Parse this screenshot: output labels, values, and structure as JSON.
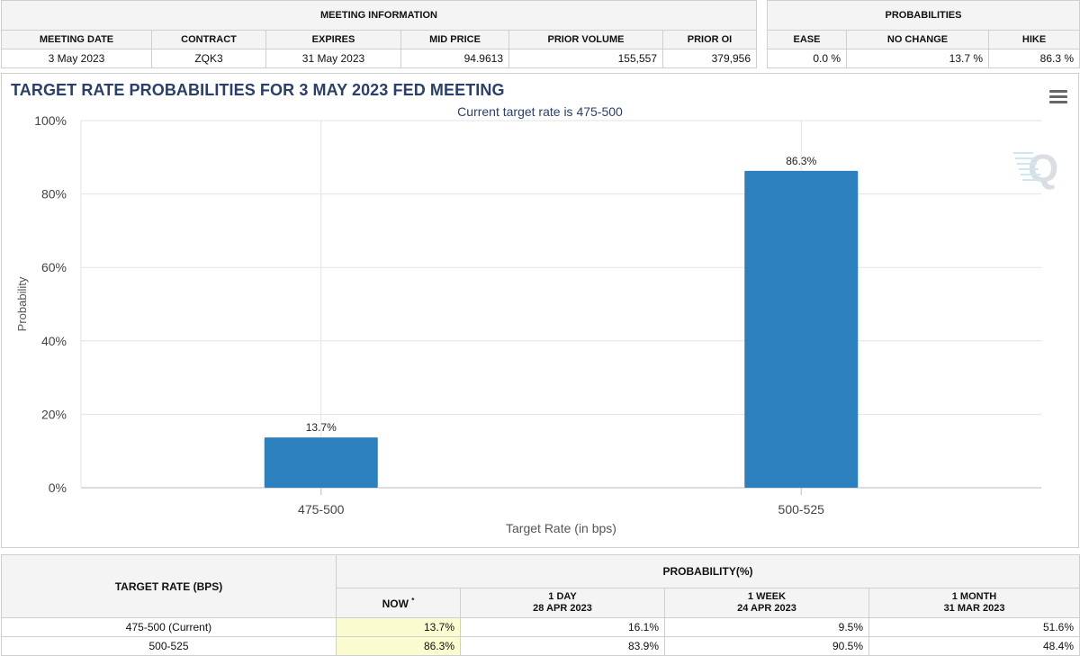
{
  "meeting_information": {
    "group_title": "MEETING INFORMATION",
    "columns": [
      "MEETING DATE",
      "CONTRACT",
      "EXPIRES",
      "MID PRICE",
      "PRIOR VOLUME",
      "PRIOR OI"
    ],
    "row": [
      "3 May 2023",
      "ZQK3",
      "31 May 2023",
      "94.9613",
      "155,557",
      "379,956"
    ]
  },
  "probabilities": {
    "group_title": "PROBABILITIES",
    "columns": [
      "EASE",
      "NO CHANGE",
      "HIKE"
    ],
    "row": [
      "0.0 %",
      "13.7 %",
      "86.3 %"
    ]
  },
  "chart": {
    "title": "TARGET RATE PROBABILITIES FOR 3 MAY 2023 FED MEETING",
    "menu_icon": "hamburger-menu-icon",
    "watermark_icon": "q-logo-icon",
    "bar_color": "#2b80bd"
  },
  "chart_data": {
    "type": "bar",
    "title": "TARGET RATE PROBABILITIES FOR 3 MAY 2023 FED MEETING",
    "subtitle": "Current target rate is 475-500",
    "categories": [
      "475-500",
      "500-525"
    ],
    "values": [
      13.7,
      86.3
    ],
    "data_labels": [
      "13.7%",
      "86.3%"
    ],
    "xlabel": "Target Rate (in bps)",
    "ylabel": "Probability",
    "ylim": [
      0,
      100
    ],
    "yticks": [
      0,
      20,
      40,
      60,
      80,
      100
    ],
    "ytick_labels": [
      "0%",
      "20%",
      "40%",
      "60%",
      "80%",
      "100%"
    ],
    "grid": true
  },
  "rates_table": {
    "target_header": "TARGET RATE (BPS)",
    "probability_header": "PROBABILITY(%)",
    "columns": [
      {
        "label": "NOW",
        "marker": "*",
        "date": ""
      },
      {
        "label": "1 DAY",
        "date": "28 APR 2023"
      },
      {
        "label": "1 WEEK",
        "date": "24 APR 2023"
      },
      {
        "label": "1 MONTH",
        "date": "31 MAR 2023"
      }
    ],
    "rows": [
      {
        "rate": "475-500 (Current)",
        "values": [
          "13.7%",
          "16.1%",
          "9.5%",
          "51.6%"
        ]
      },
      {
        "rate": "500-525",
        "values": [
          "86.3%",
          "83.9%",
          "90.5%",
          "48.4%"
        ]
      }
    ]
  }
}
